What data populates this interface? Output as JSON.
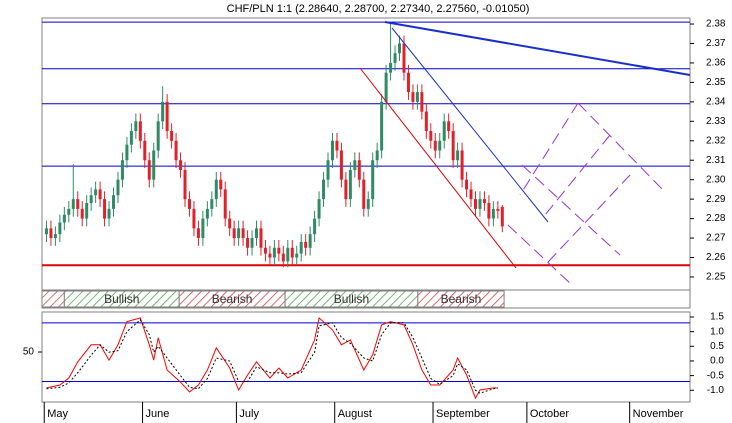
{
  "title": "CHF/PLN 1:1 (2.28640, 2.28700, 2.27340, 2.27560, -0.01050)",
  "chart_data": [
    {
      "type": "candlestick",
      "x": [
        0,
        1,
        2,
        3,
        4,
        5,
        6,
        7,
        8,
        9,
        10,
        11,
        12,
        13,
        14,
        15,
        16,
        17,
        18,
        19,
        20,
        21,
        22,
        23,
        24,
        25,
        26,
        27,
        28,
        29,
        30,
        31,
        32,
        33,
        34,
        35,
        36,
        37,
        38,
        39,
        40,
        41,
        42,
        43,
        44,
        45,
        46,
        47,
        48,
        49,
        50,
        51,
        52,
        53,
        54,
        55,
        56,
        57,
        58,
        59,
        60,
        61,
        62,
        63,
        64,
        65,
        66,
        67,
        68,
        69,
        70,
        71,
        72,
        73,
        74,
        75,
        76,
        77,
        78,
        79,
        80,
        81,
        82,
        83,
        84,
        85,
        86,
        87,
        88,
        89,
        90,
        91,
        92,
        93,
        94,
        95,
        96,
        97,
        98,
        99,
        100,
        101,
        102
      ],
      "open": [
        2.272,
        2.275,
        2.27,
        2.272,
        2.278,
        2.282,
        2.285,
        2.29,
        2.285,
        2.28,
        2.288,
        2.292,
        2.295,
        2.29,
        2.28,
        2.285,
        2.292,
        2.3,
        2.31,
        2.318,
        2.325,
        2.33,
        2.32,
        2.31,
        2.3,
        2.315,
        2.33,
        2.34,
        2.325,
        2.32,
        2.31,
        2.305,
        2.29,
        2.285,
        2.275,
        2.27,
        2.28,
        2.285,
        2.29,
        2.3,
        2.295,
        2.28,
        2.275,
        2.27,
        2.275,
        2.27,
        2.265,
        2.27,
        2.275,
        2.265,
        2.262,
        2.26,
        2.265,
        2.262,
        2.258,
        2.265,
        2.26,
        2.262,
        2.268,
        2.265,
        2.272,
        2.28,
        2.29,
        2.3,
        2.31,
        2.32,
        2.315,
        2.3,
        2.29,
        2.305,
        2.31,
        2.3,
        2.285,
        2.29,
        2.31,
        2.315,
        2.34,
        2.355,
        2.36,
        2.365,
        2.37,
        2.355,
        2.345,
        2.34,
        2.345,
        2.335,
        2.325,
        2.32,
        2.315,
        2.32,
        2.33,
        2.325,
        2.31,
        2.315,
        2.3,
        2.295,
        2.29,
        2.285,
        2.29,
        2.288,
        2.28,
        2.285,
        2.286
      ],
      "high": [
        2.279,
        2.279,
        2.276,
        2.282,
        2.286,
        2.289,
        2.308,
        2.294,
        2.289,
        2.292,
        2.296,
        2.299,
        2.299,
        2.294,
        2.289,
        2.296,
        2.304,
        2.314,
        2.322,
        2.329,
        2.334,
        2.334,
        2.324,
        2.314,
        2.319,
        2.334,
        2.348,
        2.344,
        2.329,
        2.324,
        2.314,
        2.309,
        2.294,
        2.289,
        2.279,
        2.284,
        2.289,
        2.294,
        2.304,
        2.304,
        2.299,
        2.284,
        2.279,
        2.279,
        2.279,
        2.274,
        2.274,
        2.279,
        2.279,
        2.269,
        2.266,
        2.269,
        2.269,
        2.266,
        2.269,
        2.269,
        2.266,
        2.272,
        2.272,
        2.276,
        2.284,
        2.294,
        2.304,
        2.314,
        2.324,
        2.324,
        2.319,
        2.304,
        2.309,
        2.314,
        2.314,
        2.304,
        2.294,
        2.314,
        2.319,
        2.344,
        2.359,
        2.381,
        2.369,
        2.374,
        2.374,
        2.359,
        2.349,
        2.349,
        2.349,
        2.339,
        2.329,
        2.324,
        2.324,
        2.334,
        2.334,
        2.329,
        2.319,
        2.319,
        2.304,
        2.299,
        2.294,
        2.294,
        2.294,
        2.292,
        2.289,
        2.289,
        2.287
      ],
      "low": [
        2.268,
        2.266,
        2.266,
        2.268,
        2.274,
        2.278,
        2.281,
        2.281,
        2.276,
        2.276,
        2.284,
        2.288,
        2.286,
        2.276,
        2.276,
        2.281,
        2.288,
        2.296,
        2.306,
        2.314,
        2.321,
        2.316,
        2.306,
        2.296,
        2.296,
        2.311,
        2.326,
        2.321,
        2.316,
        2.306,
        2.301,
        2.286,
        2.281,
        2.271,
        2.266,
        2.266,
        2.276,
        2.281,
        2.286,
        2.291,
        2.276,
        2.271,
        2.266,
        2.266,
        2.266,
        2.261,
        2.261,
        2.266,
        2.261,
        2.258,
        2.256,
        2.256,
        2.258,
        2.255,
        2.255,
        2.256,
        2.256,
        2.258,
        2.261,
        2.261,
        2.268,
        2.276,
        2.286,
        2.296,
        2.306,
        2.311,
        2.296,
        2.286,
        2.286,
        2.301,
        2.296,
        2.281,
        2.281,
        2.286,
        2.306,
        2.311,
        2.336,
        2.351,
        2.356,
        2.361,
        2.351,
        2.341,
        2.336,
        2.336,
        2.331,
        2.321,
        2.316,
        2.311,
        2.311,
        2.316,
        2.321,
        2.306,
        2.306,
        2.296,
        2.291,
        2.286,
        2.281,
        2.281,
        2.284,
        2.276,
        2.276,
        2.28,
        2.273
      ],
      "close": [
        2.275,
        2.27,
        2.272,
        2.278,
        2.282,
        2.285,
        2.29,
        2.285,
        2.28,
        2.288,
        2.292,
        2.295,
        2.29,
        2.28,
        2.285,
        2.292,
        2.3,
        2.31,
        2.318,
        2.325,
        2.33,
        2.32,
        2.31,
        2.3,
        2.315,
        2.33,
        2.34,
        2.325,
        2.32,
        2.31,
        2.305,
        2.29,
        2.285,
        2.275,
        2.27,
        2.28,
        2.285,
        2.29,
        2.3,
        2.295,
        2.28,
        2.275,
        2.27,
        2.275,
        2.27,
        2.265,
        2.27,
        2.275,
        2.265,
        2.262,
        2.26,
        2.265,
        2.262,
        2.258,
        2.265,
        2.26,
        2.262,
        2.268,
        2.265,
        2.272,
        2.28,
        2.29,
        2.3,
        2.31,
        2.32,
        2.315,
        2.3,
        2.29,
        2.305,
        2.31,
        2.3,
        2.285,
        2.29,
        2.31,
        2.315,
        2.34,
        2.355,
        2.36,
        2.365,
        2.37,
        2.355,
        2.345,
        2.34,
        2.345,
        2.335,
        2.325,
        2.32,
        2.315,
        2.32,
        2.33,
        2.325,
        2.31,
        2.315,
        2.3,
        2.295,
        2.29,
        2.285,
        2.29,
        2.288,
        2.28,
        2.285,
        2.284,
        2.276
      ],
      "up_color": "#2f8a66",
      "down_color": "#e0202a",
      "xlim": [
        -1,
        144
      ],
      "ylim": [
        2.2433,
        2.3831
      ],
      "yticks": [
        2.25,
        2.26,
        2.27,
        2.28,
        2.29,
        {
          "value": 2.3,
          "label": "2.30"
        },
        2.31,
        2.32,
        2.33,
        2.34,
        2.35,
        2.36,
        2.37,
        2.38
      ],
      "levels": [
        {
          "value": 2.381,
          "color": "#0000cc"
        },
        {
          "value": 2.357,
          "color": "#0000cc"
        },
        {
          "value": 2.339,
          "color": "#0000cc"
        },
        {
          "value": 2.307,
          "color": "#0000cc"
        },
        {
          "value": 2.256,
          "color": "#e00000"
        }
      ]
    },
    {
      "type": "band",
      "xlim": [
        -1,
        144
      ],
      "segments": [
        {
          "start": -1,
          "end": 4,
          "label": null,
          "color": "#d04040"
        },
        {
          "start": 4,
          "end": 29.7,
          "label": "Bullish",
          "color": "#40a040"
        },
        {
          "start": 29.7,
          "end": 53.4,
          "label": "Bearish",
          "color": "#d04040"
        },
        {
          "start": 53.4,
          "end": 83.1,
          "label": "Bullish",
          "color": "#40a040"
        },
        {
          "start": 83.1,
          "end": 102.4,
          "label": "Bearish",
          "color": "#d04040"
        }
      ]
    },
    {
      "type": "line",
      "xlim": [
        -1,
        144
      ],
      "ylim": [
        -1.4,
        1.67
      ],
      "x": [
        0,
        3,
        5,
        7,
        10,
        12,
        14,
        16,
        18,
        21,
        23,
        24,
        25,
        27,
        30,
        32,
        34,
        36,
        38,
        41,
        43,
        45,
        47,
        50,
        52,
        54,
        57,
        60,
        61,
        64,
        66,
        68,
        71,
        73,
        75,
        77,
        80,
        82,
        84,
        86,
        88,
        91,
        92,
        94,
        96,
        97,
        100,
        101
      ],
      "series": [
        {
          "color": "#ff0000",
          "values": [
            -0.92,
            -0.82,
            -0.58,
            -0.03,
            0.55,
            0.55,
            0.03,
            0.55,
            1.34,
            1.47,
            0.55,
            0.03,
            0.79,
            -0.31,
            -0.72,
            -1.06,
            -0.82,
            -0.31,
            0.45,
            -0.24,
            -0.99,
            -0.48,
            -0.03,
            -0.58,
            -0.24,
            -0.58,
            -0.31,
            0.72,
            1.47,
            1.06,
            0.55,
            0.72,
            -0.31,
            0.21,
            1.23,
            1.34,
            1.23,
            0.55,
            -0.31,
            -0.82,
            -0.82,
            -0.31,
            0.1,
            -0.48,
            -1.27,
            -0.99,
            -0.92,
            -0.92
          ]
        },
        {
          "color": "#000000",
          "dash": "2 2",
          "values": [
            -0.95,
            -0.9,
            -0.75,
            -0.4,
            0.2,
            0.55,
            0.3,
            0.35,
            1.0,
            1.4,
            0.9,
            0.3,
            0.5,
            0.1,
            -0.5,
            -0.9,
            -0.95,
            -0.6,
            0.1,
            0.0,
            -0.7,
            -0.7,
            -0.2,
            -0.4,
            -0.4,
            -0.45,
            -0.4,
            0.3,
            1.2,
            1.3,
            0.8,
            0.6,
            0.1,
            0.0,
            0.9,
            1.3,
            1.3,
            0.8,
            0.1,
            -0.6,
            -0.8,
            -0.5,
            -0.1,
            -0.3,
            -1.0,
            -1.1,
            -0.95,
            -0.93
          ]
        }
      ],
      "yticks": [
        1.5,
        {
          "value": 1.0,
          "label": "1.0"
        },
        0.5,
        {
          "value": 0.0,
          "label": "0.0"
        },
        -0.5,
        {
          "value": -1.0,
          "label": "-1.0"
        }
      ],
      "y2lim": [
        0,
        90
      ],
      "y2ticks": [
        50
      ],
      "levels": [
        {
          "value": 1.3,
          "color": "#0000cc"
        },
        {
          "value": -0.7,
          "color": "#0000cc"
        }
      ],
      "xticks": [
        {
          "value": -0.5,
          "label": "May"
        },
        {
          "value": 21.5,
          "label": "June"
        },
        {
          "value": 42.5,
          "label": "July"
        },
        {
          "value": 64.5,
          "label": "August"
        },
        {
          "value": 86.5,
          "label": "September"
        },
        {
          "value": 107.5,
          "label": "October"
        },
        {
          "value": 130.5,
          "label": "November"
        }
      ]
    }
  ]
}
